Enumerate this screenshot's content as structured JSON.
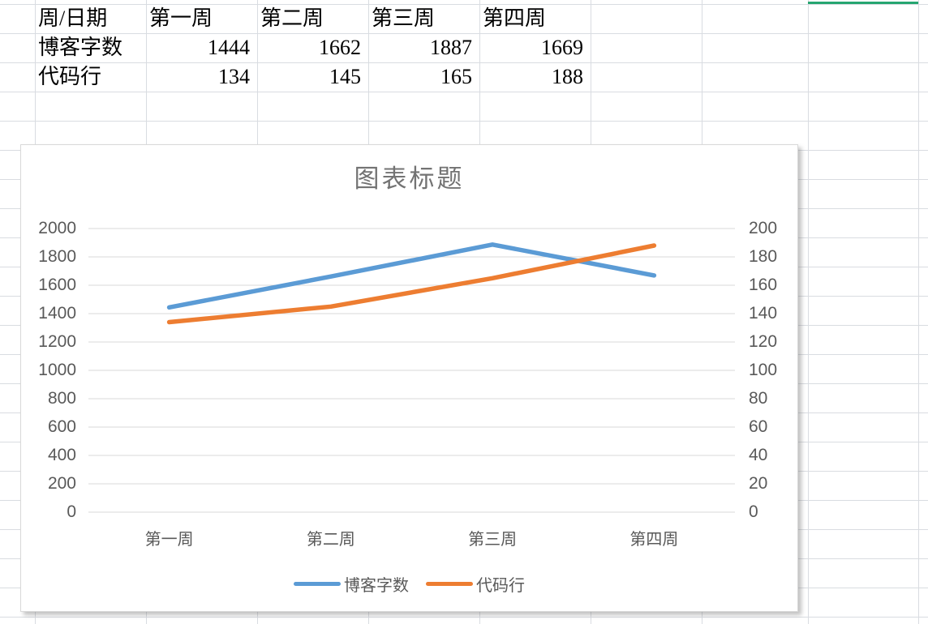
{
  "colors": {
    "sheet_grid": "#d9dce1",
    "selection_green": "#26a570",
    "chart_border": "#d9d9d9",
    "gridline": "#d9d9d9",
    "axis_label": "#595959",
    "title_color": "#737373",
    "series_blue": "#5B9BD5",
    "series_orange": "#ED7D31"
  },
  "spreadsheet": {
    "table": {
      "header_row": [
        "周/日期",
        "第一周",
        "第二周",
        "第三周",
        "第四周"
      ],
      "data_rows": [
        [
          "博客字数",
          "1444",
          "1662",
          "1887",
          "1669"
        ],
        [
          "代码行",
          "134",
          "145",
          "165",
          "188"
        ]
      ]
    }
  },
  "chart_data": {
    "type": "line",
    "title": "图表标题",
    "categories": [
      "第一周",
      "第二周",
      "第三周",
      "第四周"
    ],
    "series": [
      {
        "name": "博客字数",
        "values": [
          1444,
          1662,
          1887,
          1669
        ],
        "color": "#5B9BD5",
        "y_axis": "left"
      },
      {
        "name": "代码行",
        "values": [
          134,
          145,
          165,
          188
        ],
        "color": "#ED7D31",
        "y_axis": "right"
      }
    ],
    "left_axis": {
      "min": 0,
      "max": 2000,
      "step": 200,
      "tick_labels": [
        "2000",
        "1800",
        "1600",
        "1400",
        "1200",
        "1000",
        "800",
        "600",
        "400",
        "200",
        "0"
      ]
    },
    "right_axis": {
      "min": 0,
      "max": 200,
      "step": 20,
      "tick_labels": [
        "200",
        "180",
        "160",
        "140",
        "120",
        "100",
        "80",
        "60",
        "40",
        "20",
        "0"
      ]
    },
    "grid": true,
    "legend_position": "bottom"
  }
}
